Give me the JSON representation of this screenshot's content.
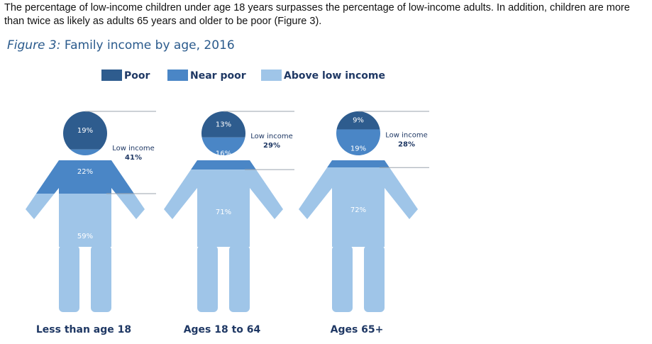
{
  "intro": "The percentage of low-income children under age 18 years surpasses the percentage of low-income adults. In addition, children are more than twice as likely as adults 65 years and older to be poor (Figure 3).",
  "chart_data": {
    "type": "pictograph",
    "figure_label": "Figure 3:",
    "title": "Family income by age, 2016",
    "categories": [
      "Less than age 18",
      "Ages 18 to 64",
      "Ages 65+"
    ],
    "series": [
      {
        "name": "Poor",
        "color": "#2e5c8e",
        "values": [
          19,
          13,
          9
        ],
        "value_labels": [
          "19%",
          "13%",
          "9%"
        ]
      },
      {
        "name": "Near poor",
        "color": "#4a86c6",
        "values": [
          22,
          16,
          19
        ],
        "value_labels": [
          "22%",
          "16%",
          "19%"
        ]
      },
      {
        "name": "Above low income",
        "color": "#9fc5e8",
        "values": [
          59,
          71,
          72
        ],
        "value_labels": [
          "59%",
          "71%",
          "72%"
        ]
      }
    ],
    "low_income": {
      "label": "Low income",
      "values": [
        41,
        29,
        28
      ],
      "value_labels": [
        "41%",
        "29%",
        "28%"
      ]
    }
  }
}
